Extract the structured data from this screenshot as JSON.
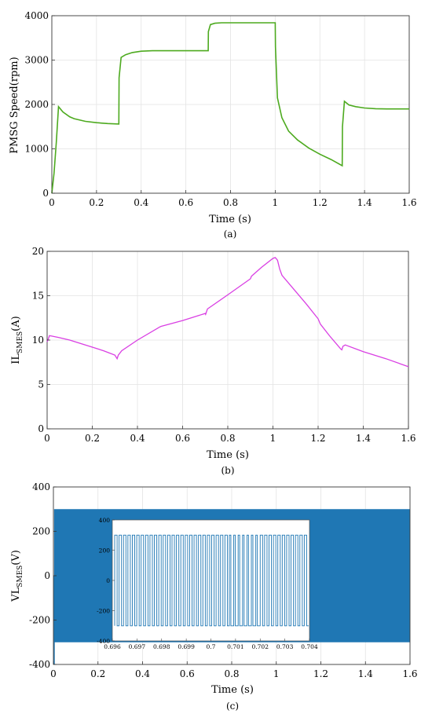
{
  "chart_data": [
    {
      "type": "line",
      "panel_caption": "(a)",
      "xlabel": "Time (s)",
      "ylabel": "PMSG Speed(rpm)",
      "xlim": [
        0,
        1.6
      ],
      "ylim": [
        0,
        4000
      ],
      "xticks": [
        0,
        0.2,
        0.4,
        0.6,
        0.8,
        1,
        1.2,
        1.4,
        1.6
      ],
      "xtick_labels": [
        "0",
        "0.2",
        "0.4",
        "0.6",
        "0.8",
        "1",
        "1.2",
        "1.4",
        "1.6"
      ],
      "yticks": [
        0,
        1000,
        2000,
        3000,
        4000
      ],
      "ytick_labels": [
        "0",
        "1000",
        "2000",
        "3000",
        "4000"
      ],
      "grid": true,
      "color": "#4daa1f",
      "series": [
        {
          "x": [
            0,
            0.01,
            0.02,
            0.03,
            0.05,
            0.08,
            0.1,
            0.15,
            0.2,
            0.25,
            0.3,
            0.301,
            0.31,
            0.33,
            0.36,
            0.4,
            0.45,
            0.5,
            0.6,
            0.7,
            0.701,
            0.71,
            0.73,
            0.76,
            0.8,
            0.9,
            1.0,
            1.001,
            1.01,
            1.03,
            1.06,
            1.1,
            1.15,
            1.2,
            1.25,
            1.3,
            1.301,
            1.31,
            1.33,
            1.36,
            1.4,
            1.45,
            1.5,
            1.55,
            1.6
          ],
          "y": [
            0,
            450,
            1150,
            1950,
            1830,
            1720,
            1680,
            1620,
            1590,
            1570,
            1560,
            2600,
            3060,
            3120,
            3170,
            3200,
            3210,
            3210,
            3210,
            3210,
            3640,
            3800,
            3830,
            3840,
            3840,
            3840,
            3840,
            3300,
            2150,
            1700,
            1400,
            1200,
            1020,
            880,
            760,
            620,
            1500,
            2070,
            1990,
            1950,
            1920,
            1905,
            1900,
            1900,
            1900
          ]
        }
      ]
    },
    {
      "type": "line",
      "panel_caption": "(b)",
      "xlabel": "Time (s)",
      "ylabel_main": "IL",
      "ylabel_sub": "SMES",
      "ylabel_unit": "(A)",
      "xlim": [
        0,
        1.6
      ],
      "ylim": [
        0,
        20
      ],
      "xticks": [
        0,
        0.2,
        0.4,
        0.6,
        0.8,
        1,
        1.2,
        1.4,
        1.6
      ],
      "xtick_labels": [
        "0",
        "0.2",
        "0.4",
        "0.6",
        "0.8",
        "1",
        "1.2",
        "1.4",
        "1.6"
      ],
      "yticks": [
        0,
        5,
        10,
        15,
        20
      ],
      "ytick_labels": [
        "0",
        "5",
        "10",
        "15",
        "20"
      ],
      "grid": true,
      "color": "#d93fe3",
      "series": [
        {
          "x": [
            0,
            0.005,
            0.01,
            0.02,
            0.05,
            0.1,
            0.15,
            0.2,
            0.25,
            0.3,
            0.31,
            0.315,
            0.33,
            0.4,
            0.5,
            0.505,
            0.6,
            0.7,
            0.702,
            0.71,
            0.8,
            0.9,
            0.905,
            0.95,
            1.0,
            1.01,
            1.02,
            1.03,
            1.04,
            1.1,
            1.15,
            1.2,
            1.21,
            1.25,
            1.3,
            1.305,
            1.31,
            1.32,
            1.4,
            1.5,
            1.6
          ],
          "y": [
            9.8,
            10.1,
            10.5,
            10.45,
            10.3,
            10.0,
            9.6,
            9.2,
            8.8,
            8.3,
            7.9,
            8.3,
            8.8,
            10.0,
            11.5,
            11.55,
            12.2,
            13.0,
            12.9,
            13.5,
            15.1,
            16.9,
            17.2,
            18.2,
            19.2,
            19.3,
            19.0,
            18.0,
            17.3,
            15.5,
            14.0,
            12.4,
            11.8,
            10.5,
            9.0,
            8.9,
            9.3,
            9.45,
            8.7,
            7.9,
            7.0
          ]
        }
      ]
    },
    {
      "type": "line",
      "panel_caption": "(c)",
      "xlabel": "Time (s)",
      "ylabel_main": "VL",
      "ylabel_sub": "SMES",
      "ylabel_unit": "(V)",
      "xlim": [
        0,
        1.6
      ],
      "ylim": [
        -400,
        400
      ],
      "xticks": [
        0,
        0.2,
        0.4,
        0.6,
        0.8,
        1,
        1.2,
        1.4,
        1.6
      ],
      "xtick_labels": [
        "0",
        "0.2",
        "0.4",
        "0.6",
        "0.8",
        "1",
        "1.2",
        "1.4",
        "1.6"
      ],
      "yticks": [
        -400,
        -200,
        0,
        200,
        400
      ],
      "ytick_labels": [
        "-400",
        "-200",
        "0",
        "200",
        "400"
      ],
      "grid": true,
      "color": "#1f77b4",
      "switching_band": {
        "high": 300,
        "low": -300,
        "x_start": 0.003,
        "x_end": 1.6
      },
      "inset": {
        "xlim": [
          0.696,
          0.704
        ],
        "ylim": [
          -400,
          400
        ],
        "xticks": [
          0.696,
          0.697,
          0.698,
          0.699,
          0.7,
          0.701,
          0.702,
          0.703,
          0.704
        ],
        "xtick_labels": [
          "0.696",
          "0.697",
          "0.698",
          "0.699",
          "0.7",
          "0.701",
          "0.702",
          "0.703",
          "0.704"
        ],
        "yticks": [
          -400,
          -200,
          0,
          200,
          400
        ],
        "ytick_labels": [
          "-400",
          "-200",
          "0",
          "200",
          "400"
        ],
        "pulse_high": 300,
        "pulse_low": -300,
        "pulse_count": 44
      }
    }
  ]
}
